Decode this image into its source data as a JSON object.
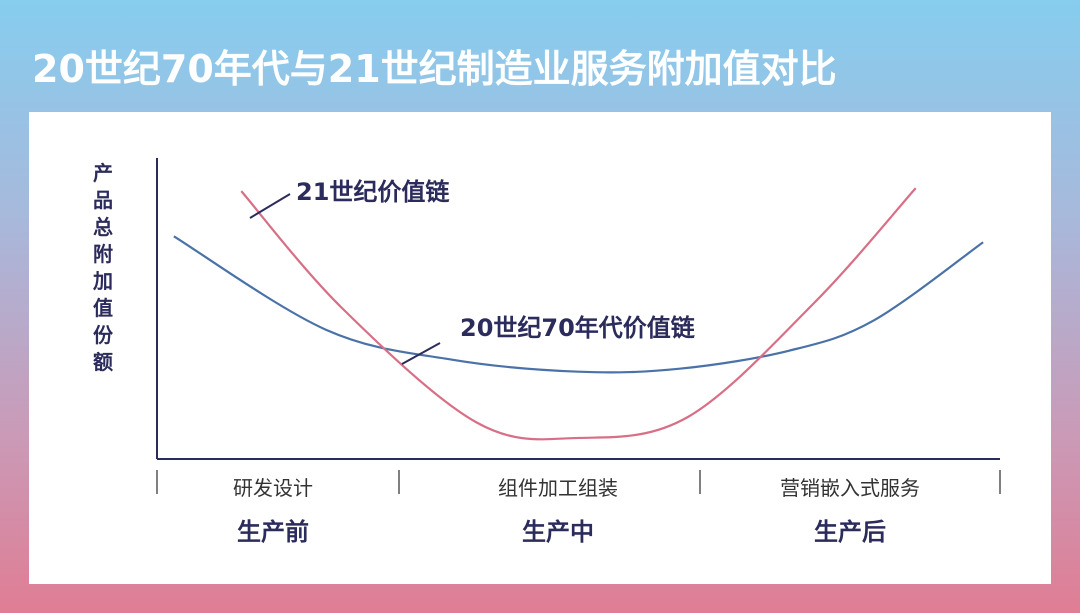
{
  "title": "20世纪70年代与21世纪制造业服务附加值对比",
  "chart_data": {
    "type": "line",
    "ylabel": "产品总附加值份额",
    "series": [
      {
        "name": "20世纪70年代价值链",
        "color": "#4a72a8",
        "x": [
          0.02,
          0.2,
          0.35,
          0.5,
          0.62,
          0.75,
          0.85,
          0.98
        ],
        "y": [
          0.74,
          0.43,
          0.33,
          0.29,
          0.3,
          0.36,
          0.46,
          0.72
        ]
      },
      {
        "name": "21世纪价值链",
        "color": "#d86f86",
        "x": [
          0.1,
          0.22,
          0.38,
          0.5,
          0.63,
          0.78,
          0.9
        ],
        "y": [
          0.89,
          0.5,
          0.12,
          0.07,
          0.14,
          0.52,
          0.9
        ]
      }
    ],
    "stages": [
      "研发设计",
      "组件加工组装",
      "营销嵌入式服务"
    ],
    "phases": [
      "生产前",
      "生产中",
      "生产后"
    ],
    "grid": false
  }
}
